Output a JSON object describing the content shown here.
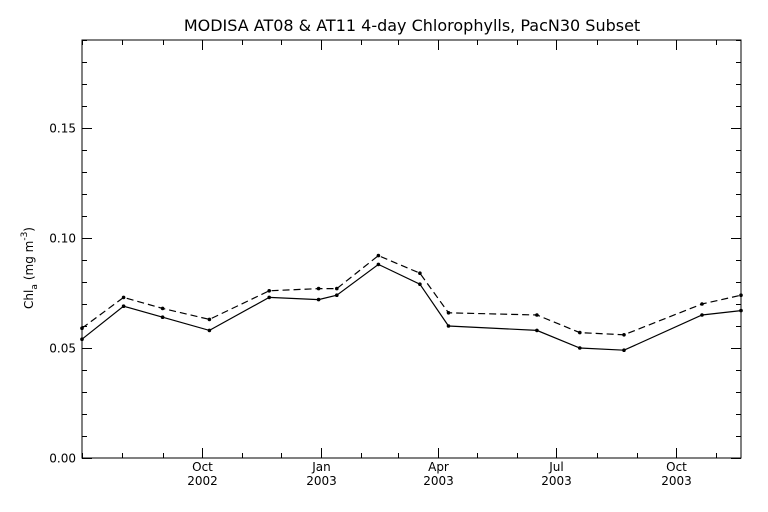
{
  "chart_data": {
    "type": "line",
    "title": "MODISA AT08 & AT11 4-day Chlorophylls, PacN30 Subset",
    "ylabel_main": "Chl",
    "ylabel_sub": "a",
    "ylabel_units_prefix": "(mg m",
    "ylabel_units_exp": "-3",
    "ylabel_units_suffix": ")",
    "xlim": [
      "2002-07-01",
      "2003-11-20"
    ],
    "ylim": [
      0.0,
      0.19
    ],
    "y_ticks": [
      {
        "value": 0.0,
        "label": "0.00"
      },
      {
        "value": 0.05,
        "label": "0.05"
      },
      {
        "value": 0.1,
        "label": "0.10"
      },
      {
        "value": 0.15,
        "label": "0.15"
      }
    ],
    "x_ticks": [
      {
        "date": "2002-10-01",
        "line1": "Oct",
        "line2": "2002"
      },
      {
        "date": "2003-01-01",
        "line1": "Jan",
        "line2": "2003"
      },
      {
        "date": "2003-04-01",
        "line1": "Apr",
        "line2": "2003"
      },
      {
        "date": "2003-07-01",
        "line1": "Jul",
        "line2": "2003"
      },
      {
        "date": "2003-10-01",
        "line1": "Oct",
        "line2": "2003"
      }
    ],
    "series": [
      {
        "style": "solid",
        "color": "#000000",
        "x": [
          "2002-07-01",
          "2002-08-02",
          "2002-09-01",
          "2002-10-07",
          "2002-11-22",
          "2002-12-30",
          "2003-01-13",
          "2003-02-14",
          "2003-03-18",
          "2003-04-09",
          "2003-06-16",
          "2003-07-19",
          "2003-08-22",
          "2003-10-21",
          "2003-11-20"
        ],
        "y": [
          0.054,
          0.069,
          0.064,
          0.058,
          0.073,
          0.072,
          0.074,
          0.088,
          0.079,
          0.06,
          0.058,
          0.05,
          0.049,
          0.065,
          0.067
        ]
      },
      {
        "style": "dashed",
        "color": "#000000",
        "x": [
          "2002-07-01",
          "2002-08-02",
          "2002-09-01",
          "2002-10-07",
          "2002-11-22",
          "2002-12-30",
          "2003-01-13",
          "2003-02-14",
          "2003-03-18",
          "2003-04-09",
          "2003-06-16",
          "2003-07-19",
          "2003-08-22",
          "2003-10-21",
          "2003-11-20"
        ],
        "y": [
          0.059,
          0.073,
          0.068,
          0.063,
          0.076,
          0.077,
          0.077,
          0.092,
          0.084,
          0.066,
          0.065,
          0.057,
          0.056,
          0.07,
          0.074
        ]
      }
    ],
    "grid": false,
    "legend": "none"
  }
}
